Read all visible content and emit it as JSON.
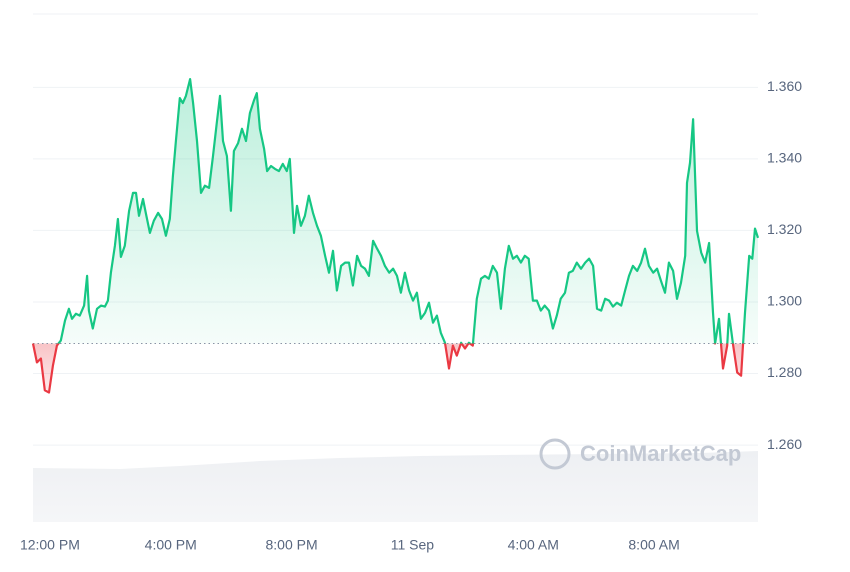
{
  "chart_data": {
    "type": "line",
    "watermark": "CoinMarketCap",
    "baseline": 1.2884,
    "colors": {
      "up": "#16c784",
      "down": "#ea3943"
    },
    "grid": true,
    "xlim": [
      -0.56,
      23.44
    ],
    "ylim": [
      1.2385,
      1.3805
    ],
    "xticks": [
      {
        "value": 0,
        "label": "12:00 PM"
      },
      {
        "value": 4,
        "label": "4:00 PM"
      },
      {
        "value": 8,
        "label": "8:00 PM"
      },
      {
        "value": 12,
        "label": "11 Sep"
      },
      {
        "value": 16,
        "label": "4:00 AM"
      },
      {
        "value": 20,
        "label": "8:00 AM"
      }
    ],
    "yticks": [
      {
        "value": 1.26,
        "label": "1.260"
      },
      {
        "value": 1.28,
        "label": "1.280"
      },
      {
        "value": 1.3,
        "label": "1.300"
      },
      {
        "value": 1.32,
        "label": "1.320"
      },
      {
        "value": 1.34,
        "label": "1.340"
      },
      {
        "value": 1.36,
        "label": "1.360"
      }
    ],
    "x": [
      -0.56,
      -0.43,
      -0.3,
      -0.17,
      -0.03,
      0.1,
      0.23,
      0.36,
      0.5,
      0.63,
      0.73,
      0.86,
      0.99,
      1.13,
      1.23,
      1.29,
      1.42,
      1.56,
      1.69,
      1.82,
      1.92,
      2.02,
      2.15,
      2.25,
      2.35,
      2.48,
      2.62,
      2.75,
      2.85,
      2.95,
      3.08,
      3.18,
      3.31,
      3.44,
      3.58,
      3.71,
      3.84,
      3.97,
      4.07,
      4.17,
      4.3,
      4.4,
      4.5,
      4.64,
      4.74,
      4.87,
      5.0,
      5.13,
      5.27,
      5.4,
      5.53,
      5.63,
      5.73,
      5.86,
      5.99,
      6.09,
      6.23,
      6.36,
      6.49,
      6.62,
      6.75,
      6.85,
      6.95,
      7.09,
      7.19,
      7.32,
      7.45,
      7.58,
      7.71,
      7.84,
      7.94,
      8.08,
      8.18,
      8.31,
      8.44,
      8.57,
      8.71,
      8.84,
      8.97,
      9.11,
      9.24,
      9.37,
      9.5,
      9.64,
      9.77,
      9.9,
      10.03,
      10.17,
      10.3,
      10.43,
      10.56,
      10.7,
      10.83,
      10.96,
      11.09,
      11.23,
      11.36,
      11.49,
      11.62,
      11.75,
      11.89,
      12.02,
      12.15,
      12.28,
      12.42,
      12.55,
      12.68,
      12.81,
      12.94,
      13.08,
      13.21,
      13.34,
      13.47,
      13.61,
      13.74,
      13.87,
      14.0,
      14.13,
      14.27,
      14.4,
      14.53,
      14.66,
      14.8,
      14.93,
      15.06,
      15.19,
      15.33,
      15.46,
      15.59,
      15.72,
      15.85,
      15.99,
      16.12,
      16.25,
      16.38,
      16.52,
      16.65,
      16.78,
      16.91,
      17.05,
      17.18,
      17.31,
      17.44,
      17.58,
      17.72,
      17.85,
      17.98,
      18.11,
      18.25,
      18.38,
      18.51,
      18.64,
      18.77,
      18.91,
      19.04,
      19.17,
      19.3,
      19.44,
      19.57,
      19.7,
      19.83,
      19.97,
      20.1,
      20.23,
      20.36,
      20.49,
      20.63,
      20.76,
      20.89,
      21.03,
      21.09,
      21.19,
      21.29,
      21.42,
      21.56,
      21.69,
      21.82,
      21.95,
      22.02,
      22.15,
      22.28,
      22.42,
      22.48,
      22.62,
      22.75,
      22.88,
      23.01,
      23.15,
      23.25,
      23.34,
      23.44
    ],
    "values": [
      1.2884,
      1.2831,
      1.2842,
      1.2753,
      1.2747,
      1.2822,
      1.2878,
      1.2892,
      1.2948,
      1.2981,
      1.2953,
      1.2967,
      1.2962,
      1.299,
      1.3073,
      1.2976,
      1.2926,
      1.2981,
      1.299,
      1.2987,
      1.3004,
      1.3082,
      1.3157,
      1.3232,
      1.3126,
      1.3157,
      1.3255,
      1.3305,
      1.3305,
      1.3241,
      1.3288,
      1.3246,
      1.3193,
      1.3227,
      1.3249,
      1.3232,
      1.3185,
      1.3232,
      1.3352,
      1.345,
      1.357,
      1.3556,
      1.3576,
      1.3623,
      1.3556,
      1.345,
      1.3305,
      1.3325,
      1.3319,
      1.3408,
      1.3506,
      1.3576,
      1.345,
      1.3408,
      1.3255,
      1.3422,
      1.3444,
      1.3484,
      1.345,
      1.3528,
      1.3562,
      1.3584,
      1.3484,
      1.3428,
      1.3366,
      1.338,
      1.3372,
      1.3366,
      1.3386,
      1.3366,
      1.34,
      1.3193,
      1.3269,
      1.3213,
      1.3241,
      1.3297,
      1.3249,
      1.3213,
      1.3185,
      1.3129,
      1.3082,
      1.3143,
      1.3032,
      1.3101,
      1.311,
      1.311,
      1.3046,
      1.3129,
      1.3101,
      1.3093,
      1.3073,
      1.3171,
      1.3149,
      1.3129,
      1.3101,
      1.3082,
      1.3093,
      1.3073,
      1.3026,
      1.3082,
      1.3032,
      1.3004,
      1.3026,
      1.2953,
      1.297,
      1.2998,
      1.2942,
      1.2962,
      1.2914,
      1.2886,
      1.2814,
      1.2878,
      1.285,
      1.2886,
      1.287,
      1.2886,
      1.2878,
      1.3009,
      1.3065,
      1.3073,
      1.3065,
      1.3101,
      1.3082,
      1.2981,
      1.3093,
      1.3157,
      1.3121,
      1.3129,
      1.311,
      1.3129,
      1.3121,
      1.3004,
      1.3004,
      1.2976,
      1.299,
      1.2976,
      1.2926,
      1.2962,
      1.3009,
      1.3026,
      1.3082,
      1.3087,
      1.311,
      1.3093,
      1.311,
      1.3121,
      1.3101,
      1.2981,
      1.2976,
      1.3009,
      1.3004,
      1.2987,
      1.2998,
      1.299,
      1.3032,
      1.3073,
      1.3101,
      1.3087,
      1.311,
      1.3149,
      1.3101,
      1.3082,
      1.3093,
      1.3059,
      1.3026,
      1.311,
      1.3087,
      1.3009,
      1.3054,
      1.3129,
      1.3333,
      1.3389,
      1.3511,
      1.3199,
      1.3138,
      1.311,
      1.3165,
      1.297,
      1.2884,
      1.2953,
      1.2814,
      1.2878,
      1.2967,
      1.2878,
      1.2803,
      1.2794,
      1.297,
      1.3129,
      1.3121,
      1.3205,
      1.3179
    ]
  }
}
